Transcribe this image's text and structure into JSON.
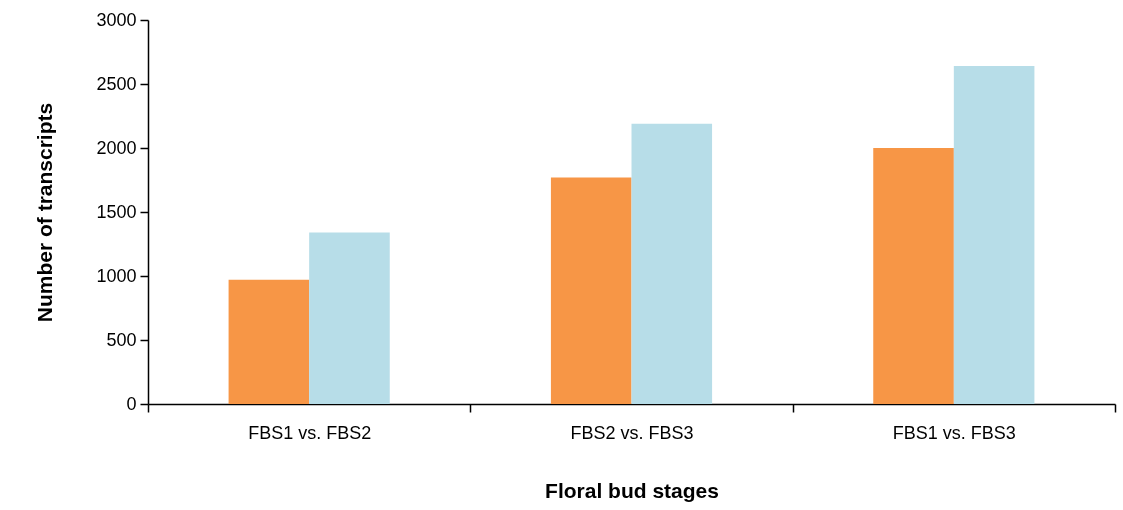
{
  "chart_data": {
    "type": "bar",
    "xlabel": "Floral bud stages",
    "ylabel": "Number of transcripts",
    "categories": [
      "FBS1 vs. FBS2",
      "FBS2 vs. FBS3",
      "FBS1 vs. FBS3"
    ],
    "series": [
      {
        "color": "#f79646",
        "values": [
          970,
          1770,
          2000
        ]
      },
      {
        "color": "#b7dde8",
        "values": [
          1340,
          2190,
          2640
        ]
      }
    ],
    "ylim": [
      0,
      3000
    ],
    "yticks": [
      0,
      500,
      1000,
      1500,
      2000,
      2500,
      3000
    ]
  }
}
